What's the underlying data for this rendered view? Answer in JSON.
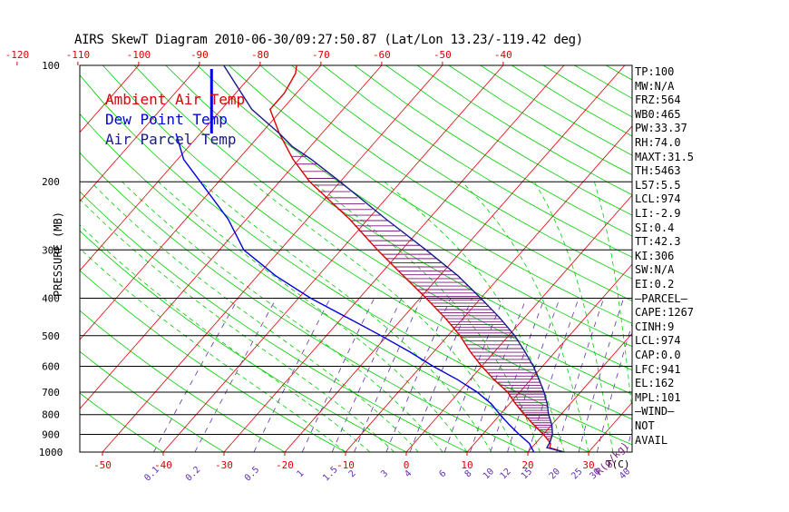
{
  "title": "AIRS SkewT Diagram 2010-06-30/09:27:50.87 (Lat/Lon 13.23/-119.42 deg)",
  "legend": [
    {
      "label": "Ambient Air Temp",
      "color": "#dd0000"
    },
    {
      "label": "Dew Point Temp",
      "color": "#0000dd"
    },
    {
      "label": "Air Parcel Temp",
      "color": "#1a1a8a"
    }
  ],
  "indices": [
    "TP:100",
    "MW:N/A",
    "FRZ:564",
    "WB0:465",
    "PW:33.37",
    "RH:74.0",
    "MAXT:31.5",
    "TH:5463",
    "L57:5.5",
    "LCL:974",
    "LI:-2.9",
    "SI:0.4",
    "TT:42.3",
    "KI:306",
    "SW:N/A",
    "EI:0.2",
    "—PARCEL—",
    "CAPE:1267",
    "CINH:9",
    "LCL:974",
    "CAP:0.0",
    "LFC:941",
    "EL:162",
    "MPL:101",
    "—WIND—",
    "NOT",
    "AVAIL"
  ],
  "colors": {
    "isotherm": "#dd0000",
    "dry_adiabat": "#00cc00",
    "moist_adiabat": "#00cc00",
    "mixing_ratio": "#6030b0",
    "isobar": "#000000",
    "ambient": "#dd0000",
    "dewpoint": "#0000dd",
    "parcel": "#1a1a8a",
    "hatch": "#7a1a7a"
  },
  "chart_data": {
    "type": "line",
    "title": "AIRS SkewT Diagram 2010-06-30/09:27:50.87 (Lat/Lon 13.23/-119.42 deg)",
    "xlabel": "T(C)",
    "ylabel": "PRESSURE (MB)",
    "y_log_scale": true,
    "pressure_ticks": [
      100,
      200,
      300,
      400,
      500,
      600,
      700,
      800,
      900,
      1000
    ],
    "pressure_lines": [
      100,
      200,
      300,
      400,
      500,
      600,
      700,
      800,
      900,
      1000
    ],
    "temp_ticks_top": [
      -120,
      -110,
      -100,
      -90,
      -80,
      -70,
      -60,
      -50,
      -40
    ],
    "temp_ticks_bottom": [
      -50,
      -40,
      -30,
      -20,
      -10,
      0,
      10,
      20,
      30
    ],
    "mixing_ratio_labels": [
      "0.1",
      "0.2",
      "0.5",
      "1",
      "1.5",
      "2",
      "3",
      "4",
      "6",
      "8",
      "10",
      "12",
      "15",
      "20",
      "25",
      "30",
      "40"
    ],
    "mixing_ratio_unit": "R(g/kg)",
    "series": [
      {
        "name": "Ambient Air Temp",
        "color": "#dd0000",
        "points": [
          [
            1000,
            26
          ],
          [
            975,
            23
          ],
          [
            950,
            22.5
          ],
          [
            900,
            20
          ],
          [
            850,
            17
          ],
          [
            800,
            14
          ],
          [
            750,
            11
          ],
          [
            700,
            8
          ],
          [
            650,
            4
          ],
          [
            600,
            0
          ],
          [
            550,
            -4
          ],
          [
            500,
            -8
          ],
          [
            450,
            -13
          ],
          [
            400,
            -19
          ],
          [
            350,
            -26
          ],
          [
            300,
            -34
          ],
          [
            250,
            -43
          ],
          [
            200,
            -55
          ],
          [
            175,
            -61
          ],
          [
            150,
            -67
          ],
          [
            130,
            -72
          ],
          [
            118,
            -72
          ],
          [
            105,
            -73
          ],
          [
            100,
            -74
          ]
        ]
      },
      {
        "name": "Dew Point Temp",
        "color": "#0000dd",
        "points": [
          [
            1000,
            21
          ],
          [
            950,
            19
          ],
          [
            900,
            16
          ],
          [
            850,
            13
          ],
          [
            800,
            10
          ],
          [
            750,
            7
          ],
          [
            700,
            3
          ],
          [
            650,
            -2
          ],
          [
            600,
            -8
          ],
          [
            550,
            -14
          ],
          [
            500,
            -21
          ],
          [
            450,
            -29
          ],
          [
            400,
            -38
          ],
          [
            350,
            -47
          ],
          [
            300,
            -56
          ],
          [
            250,
            -63
          ],
          [
            200,
            -73
          ],
          [
            175,
            -79
          ],
          [
            150,
            -84
          ]
        ]
      },
      {
        "name": "Air Parcel Temp",
        "color": "#1a1a8a",
        "points": [
          [
            1000,
            26
          ],
          [
            974,
            22.5
          ],
          [
            941,
            22.2
          ],
          [
            900,
            21.5
          ],
          [
            850,
            20
          ],
          [
            800,
            18
          ],
          [
            750,
            16.2
          ],
          [
            700,
            14
          ],
          [
            650,
            11.4
          ],
          [
            600,
            8.5
          ],
          [
            550,
            5
          ],
          [
            500,
            1
          ],
          [
            450,
            -4
          ],
          [
            400,
            -10
          ],
          [
            350,
            -17
          ],
          [
            300,
            -26
          ],
          [
            250,
            -37
          ],
          [
            200,
            -50
          ],
          [
            175,
            -58
          ],
          [
            162,
            -63
          ],
          [
            150,
            -67
          ],
          [
            130,
            -75
          ],
          [
            100,
            -86
          ]
        ]
      }
    ]
  }
}
